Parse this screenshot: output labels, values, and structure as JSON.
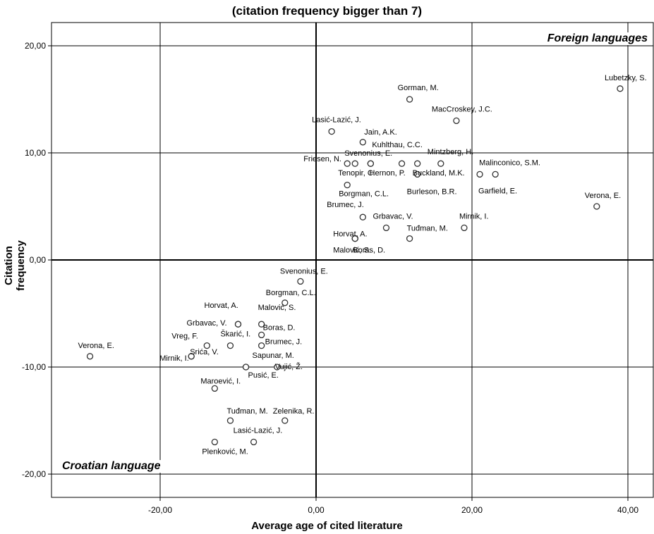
{
  "title": "(citation frequency bigger than 7)",
  "annotations": {
    "top_right": "Foreign languages",
    "bottom_left": "Croatian language"
  },
  "chart_data": {
    "type": "scatter",
    "title": "(citation frequency bigger than 7)",
    "xlabel": "Average age of cited literature",
    "ylabel": "Citation frequency",
    "xlim": [
      -34,
      43
    ],
    "ylim": [
      -22.5,
      22.5
    ],
    "xticks": [
      -20,
      0,
      20,
      40
    ],
    "xtick_labels": [
      "-20,00",
      "0,00",
      "20,00",
      "40,00"
    ],
    "yticks": [
      -20,
      -10,
      0,
      10,
      20
    ],
    "ytick_labels": [
      "-20,00",
      "-10,00",
      "0,00",
      "10,00",
      "20,00"
    ],
    "grid": true,
    "legend": "none",
    "points": [
      {
        "label": "Lubetzky, S.",
        "x": 39.0,
        "y": 16
      },
      {
        "label": "Gorman, M.",
        "x": 12.0,
        "y": 15
      },
      {
        "label": "MacCroskey, J.C.",
        "x": 18.0,
        "y": 13
      },
      {
        "label": "Lasić-Lazić, J.",
        "x": 2.0,
        "y": 12
      },
      {
        "label": "Jain, A.K.",
        "x": 6.0,
        "y": 11
      },
      {
        "label": "Kuhlthau, C.C.",
        "x": 7.0,
        "y": 9
      },
      {
        "label": "Friesen, N.",
        "x": 4.0,
        "y": 9
      },
      {
        "label": "Svenonius, E.",
        "x": 7.0,
        "y": 9
      },
      {
        "label": "Mintzberg, H.",
        "x": 16.0,
        "y": 9
      },
      {
        "label": "Tenopir, C.",
        "x": 5.0,
        "y": 9
      },
      {
        "label": "Hernon, P.",
        "x": 11.0,
        "y": 9
      },
      {
        "label": "Buckland, M.K.",
        "x": 13.0,
        "y": 9
      },
      {
        "label": "Malinconico, S.M.",
        "x": 23.0,
        "y": 8
      },
      {
        "label": "Burleson, B.R.",
        "x": 13.0,
        "y": 8
      },
      {
        "label": "Garfield, E.",
        "x": 21.0,
        "y": 8
      },
      {
        "label": "Borgman, C.L.",
        "x": 4.0,
        "y": 7
      },
      {
        "label": "Verona, E.",
        "x": 36.0,
        "y": 5
      },
      {
        "label": "Brumec, J.",
        "x": 6.0,
        "y": 4
      },
      {
        "label": "Grbavac, V.",
        "x": 9.0,
        "y": 3
      },
      {
        "label": "Mirnik, I.",
        "x": 19.0,
        "y": 3
      },
      {
        "label": "Horvat, A.",
        "x": 5.0,
        "y": 2
      },
      {
        "label": "Tuđman, M.",
        "x": 12.0,
        "y": 2
      },
      {
        "label": "Malović, S.",
        "x": 5.0,
        "y": 2
      },
      {
        "label": "Boras, D.",
        "x": 5.0,
        "y": 2
      },
      {
        "label": "Svenonius, E.",
        "x": -2.0,
        "y": -2
      },
      {
        "label": "Borgman, C.L.",
        "x": -4.0,
        "y": -4
      },
      {
        "label": "Horvat, A.",
        "x": -10.0,
        "y": -6
      },
      {
        "label": "Malović, S.",
        "x": -7.0,
        "y": -6
      },
      {
        "label": "Grbavac, V.",
        "x": -10.0,
        "y": -6
      },
      {
        "label": "Boras, D.",
        "x": -7.0,
        "y": -7
      },
      {
        "label": "Vreg, F.",
        "x": -14.0,
        "y": -8
      },
      {
        "label": "Škarić, I.",
        "x": -11.0,
        "y": -8
      },
      {
        "label": "Brumec, J.",
        "x": -7.0,
        "y": -8
      },
      {
        "label": "Verona, E.",
        "x": -29.0,
        "y": -9
      },
      {
        "label": "Srića, V.",
        "x": -16.0,
        "y": -9
      },
      {
        "label": "Sapunar, M.",
        "x": -9.0,
        "y": -10
      },
      {
        "label": "Mirnik, I.",
        "x": -16.0,
        "y": -9
      },
      {
        "label": "Pusić, E.",
        "x": -9.0,
        "y": -10
      },
      {
        "label": "Vujić, Ž.",
        "x": -5.0,
        "y": -10
      },
      {
        "label": "Maroević, I.",
        "x": -13.0,
        "y": -12
      },
      {
        "label": "Tuđman, M.",
        "x": -11.0,
        "y": -15
      },
      {
        "label": "Zelenika, R.",
        "x": -4.0,
        "y": -15
      },
      {
        "label": "Lasić-Lazić, J.",
        "x": -8.0,
        "y": -17
      },
      {
        "label": "Plenković, M.",
        "x": -13.0,
        "y": -17
      }
    ]
  }
}
